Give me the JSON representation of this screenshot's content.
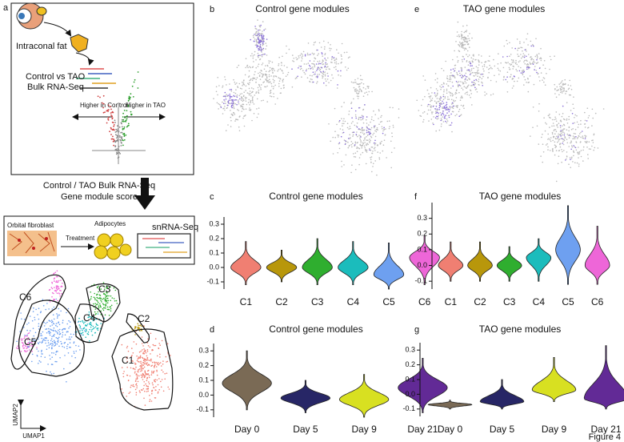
{
  "figure_label": "Figure 4",
  "panel_a": {
    "letter": "a",
    "schematic": {
      "intraconal_fat": "Intraconal fat",
      "comparison": "Control vs TAO",
      "assay": "Bulk RNA-Seq",
      "left_arrow": "Higher in Control",
      "right_arrow": "Higher in TAO"
    },
    "step": {
      "line1": "Control / TAO  Bulk RNA-Seq",
      "line2": "Gene module score"
    },
    "culture": {
      "cells": "Orbital fibroblast",
      "treatment": "Treatment",
      "adipocytes": "Adipocytes",
      "assay": "snRNA-Seq"
    },
    "umap": {
      "clusters": [
        "C1",
        "C2",
        "C3",
        "C4",
        "C5",
        "C6"
      ],
      "y_axis": "UMAP2",
      "x_axis": "UMAP1"
    }
  },
  "panel_b": {
    "letter": "b",
    "title": "Control gene modules"
  },
  "panel_e": {
    "letter": "e",
    "title": "TAO gene modules"
  },
  "violins": [
    {
      "letter": "c",
      "title": "Control gene modules",
      "categories": [
        "C1",
        "C2",
        "C3",
        "C4",
        "C5",
        "C6"
      ],
      "colors": [
        "#f07f72",
        "#b8970b",
        "#2fae2f",
        "#1bbcbc",
        "#6ea0f0",
        "#ee66d8"
      ],
      "min": [
        -0.12,
        -0.1,
        -0.12,
        -0.12,
        -0.15,
        -0.12
      ],
      "mode": [
        0.0,
        0.0,
        0.0,
        0.0,
        -0.05,
        0.07
      ],
      "max": [
        0.18,
        0.12,
        0.2,
        0.18,
        0.17,
        0.22
      ],
      "ylim": [
        -0.15,
        0.35
      ],
      "yticks": [
        -0.1,
        {
          "value": 0,
          "label": "0.0"
        },
        0.1,
        0.2,
        0.3
      ]
    },
    {
      "letter": "f",
      "title": "TAO gene modules",
      "categories": [
        "C1",
        "C2",
        "C3",
        "C4",
        "C5",
        "C6"
      ],
      "colors": [
        "#f07f72",
        "#b8970b",
        "#2fae2f",
        "#1bbcbc",
        "#6ea0f0",
        "#ee66d8"
      ],
      "min": [
        -0.1,
        -0.1,
        -0.1,
        -0.1,
        -0.12,
        -0.12
      ],
      "mode": [
        0.0,
        0.0,
        0.0,
        0.05,
        0.1,
        0.0
      ],
      "max": [
        0.15,
        0.15,
        0.12,
        0.17,
        0.38,
        0.25
      ],
      "ylim": [
        -0.15,
        0.4
      ],
      "yticks": [
        -0.1,
        {
          "value": 0,
          "label": "0.0"
        },
        0.1,
        0.2,
        0.3
      ]
    },
    {
      "letter": "d",
      "title": "Control gene modules",
      "categories": [
        "Day 0",
        "Day 5",
        "Day 9",
        "Day 21"
      ],
      "colors": [
        "#7a6a55",
        "#272666",
        "#d8e021",
        "#622a96"
      ],
      "min": [
        -0.1,
        -0.12,
        -0.15,
        -0.12
      ],
      "mode": [
        0.08,
        -0.02,
        -0.03,
        0.05
      ],
      "max": [
        0.3,
        0.1,
        0.14,
        0.25
      ],
      "ylim": [
        -0.15,
        0.35
      ],
      "yticks": [
        -0.1,
        {
          "value": 0,
          "label": "0.0"
        },
        0.1,
        0.2,
        0.3
      ]
    },
    {
      "letter": "g",
      "title": "TAO gene modules",
      "categories": [
        "Day 0",
        "Day 5",
        "Day 9",
        "Day 21"
      ],
      "colors": [
        "#7a6a55",
        "#272666",
        "#d8e021",
        "#622a96"
      ],
      "min": [
        -0.1,
        -0.1,
        -0.05,
        -0.1
      ],
      "mode": [
        -0.07,
        -0.05,
        0.03,
        -0.03
      ],
      "max": [
        -0.04,
        0.1,
        0.25,
        0.33
      ],
      "ylim": [
        -0.15,
        0.35
      ],
      "yticks": [
        -0.1,
        {
          "value": 0,
          "label": "0.0"
        },
        0.1,
        0.2,
        0.3
      ]
    }
  ]
}
